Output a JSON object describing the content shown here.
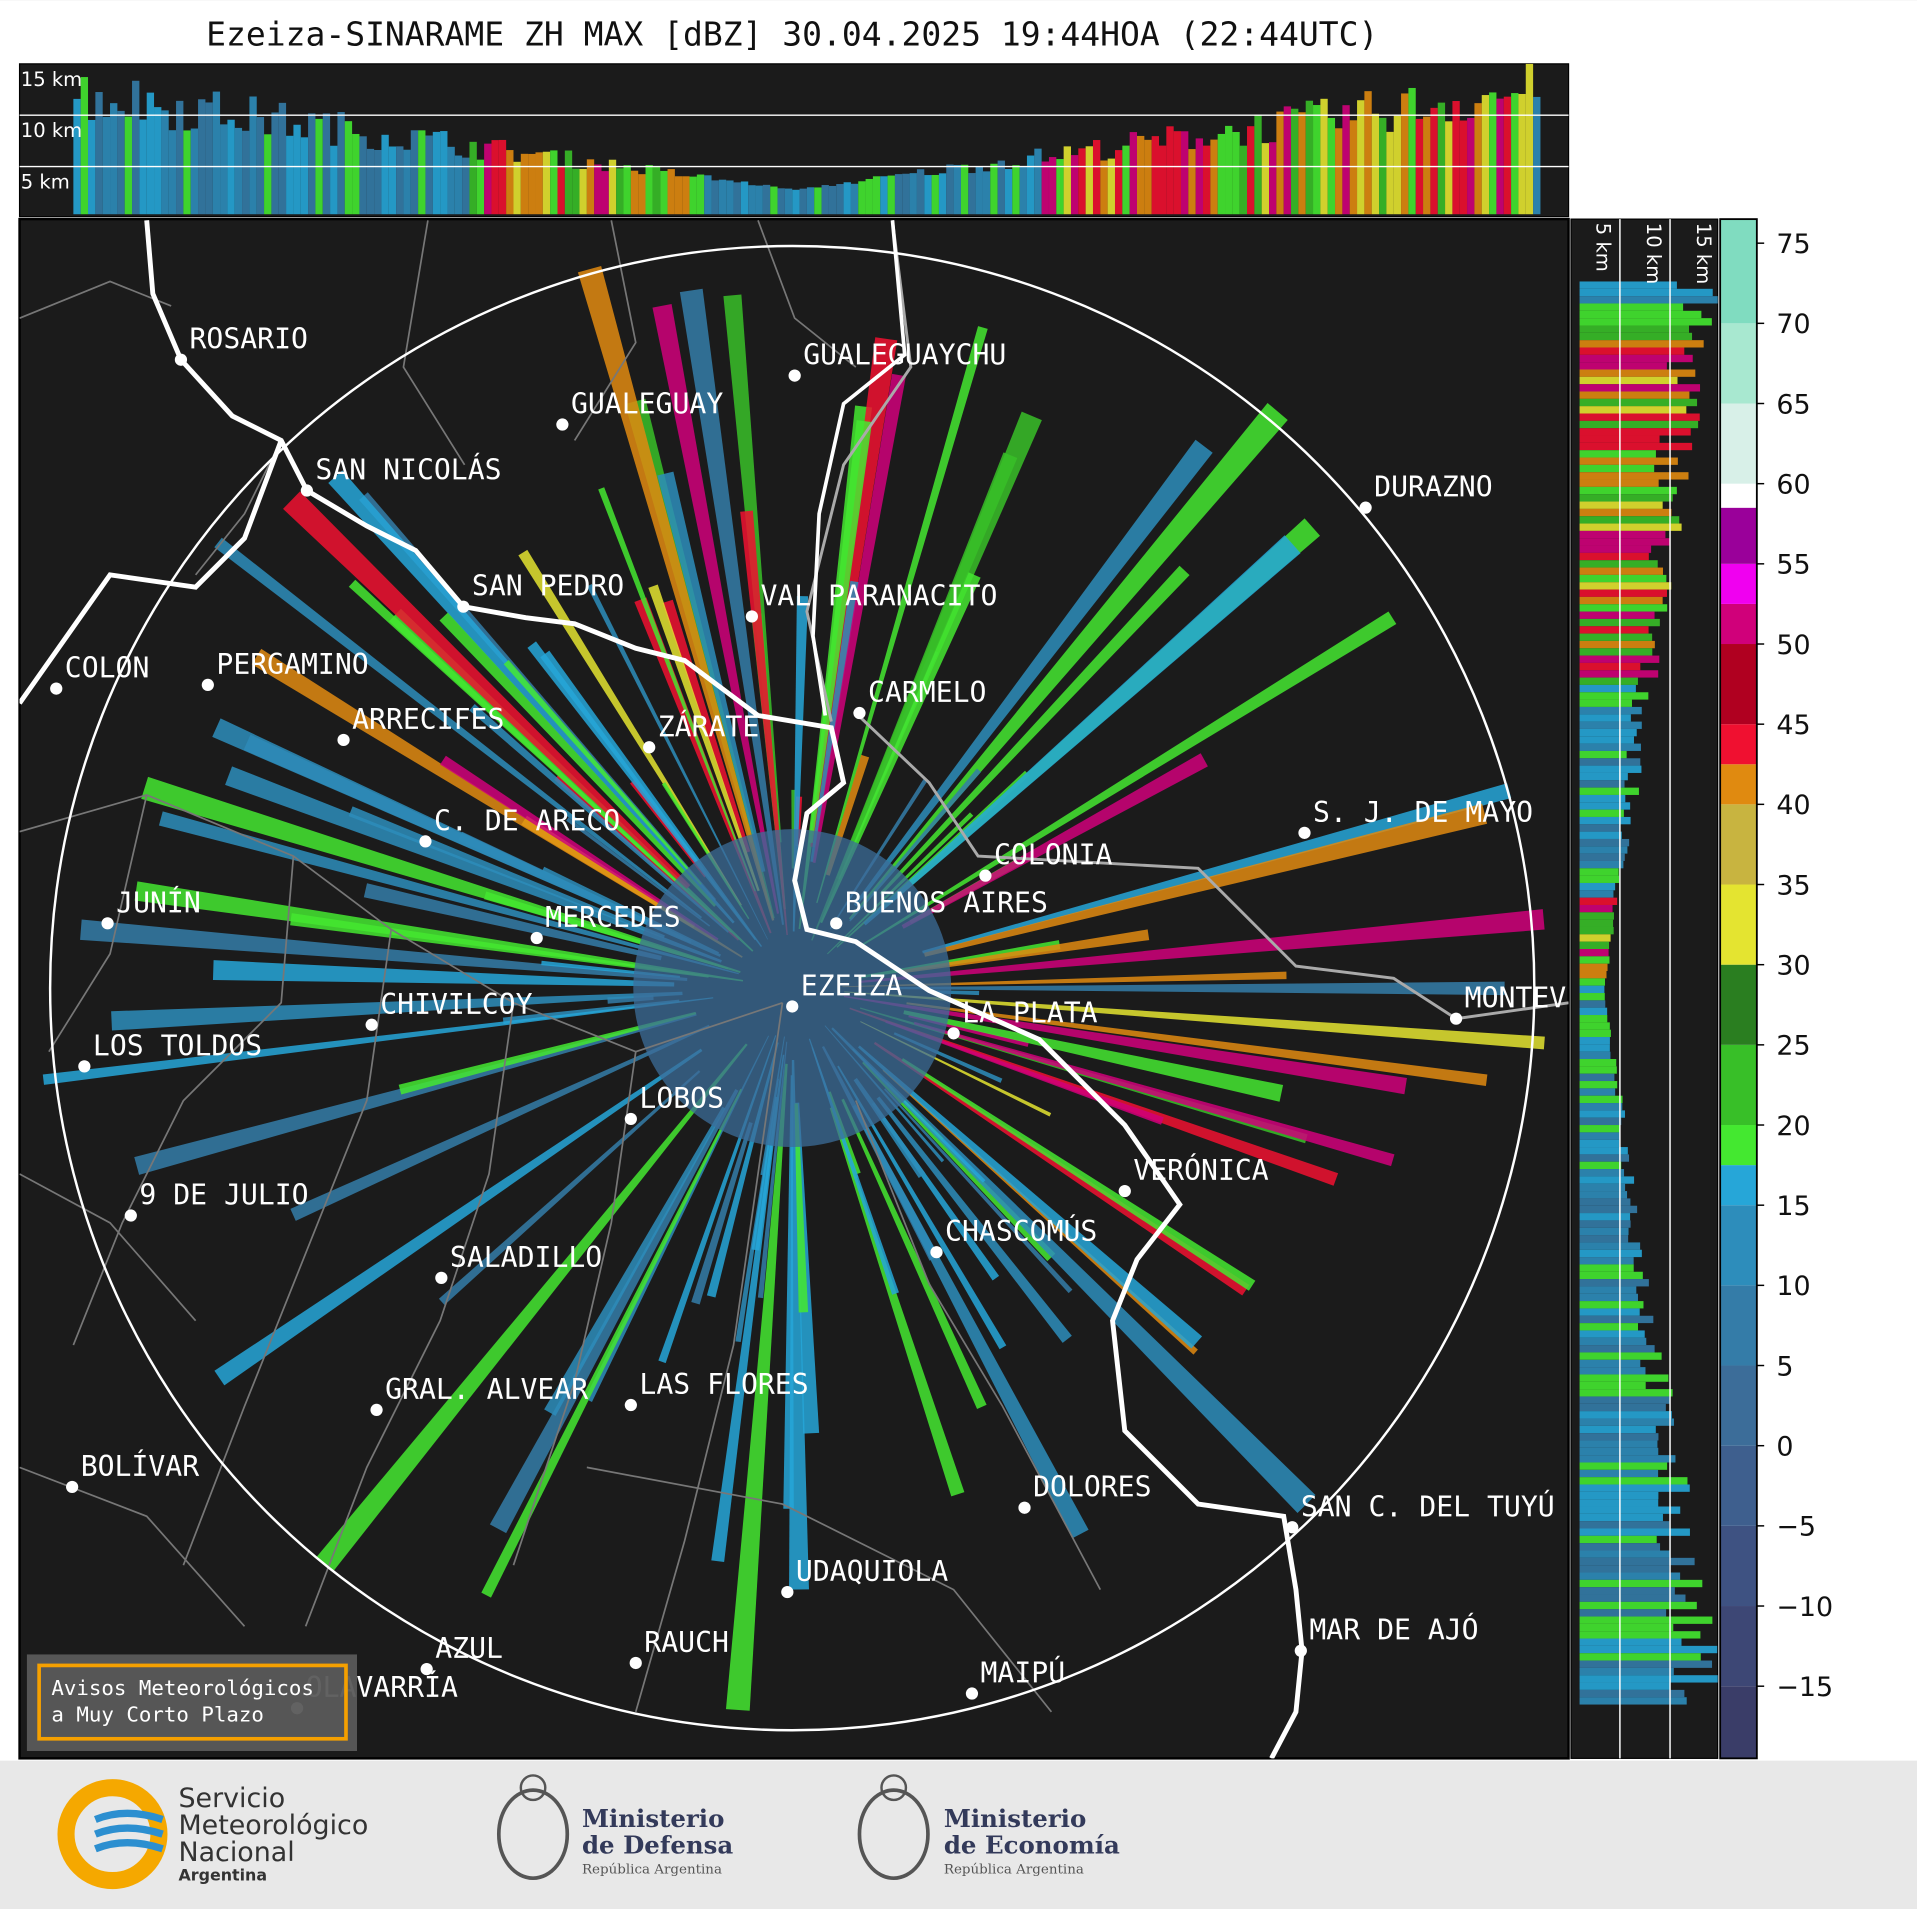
{
  "title": "Ezeiza-SINARAME ZH MAX [dBZ] 30.04.2025 19:44HOA (22:44UTC)",
  "top_panel": {
    "height_labels": [
      "15 km",
      "10 km",
      "5 km"
    ]
  },
  "side_panel": {
    "height_labels": [
      "5 km",
      "10 km",
      "15 km"
    ]
  },
  "map": {
    "cities": [
      "ROSARIO",
      "GUALEGUAYCHU",
      "GUALEGUAY",
      "SAN NICOLÁS",
      "DURAZNO",
      "SAN PEDRO",
      "VAL PARANACITO",
      "COLON",
      "PERGAMINO",
      "CARMELO",
      "ARRECIFES",
      "ZÁRATE",
      "S. J. DE MAYO",
      "C. DE ARECO",
      "COLONIA",
      "JUNÍN",
      "BUENOS AIRES",
      "MERCEDES",
      "EZEIZA",
      "MONTEVIDEO",
      "LA PLATA",
      "CHIVILCOY",
      "LOS TOLDOS",
      "LOBOS",
      "VERÓNICA",
      "9 DE JULIO",
      "CHASCOMÚS",
      "SALADILLO",
      "GRAL. ALVEAR",
      "LAS FLORES",
      "BOLÍVAR",
      "DOLORES",
      "SAN C. DEL TUYÚ",
      "UDAQUIOLA",
      "MAR DE AJÓ",
      "AZUL",
      "RAUCH",
      "OLAVARRÍA",
      "MAIPÚ"
    ],
    "warning_box": [
      "Avisos Meteorológicos",
      "a Muy Corto Plazo"
    ]
  },
  "colorbar": {
    "ylim": [
      -19.5,
      76.5
    ],
    "ticks": [
      75,
      70,
      65,
      60,
      55,
      50,
      45,
      40,
      35,
      30,
      25,
      20,
      15,
      10,
      5,
      0,
      {
        "value": -5,
        "label": "−5"
      },
      {
        "value": -10,
        "label": "−10"
      },
      {
        "value": -15,
        "label": "−15"
      }
    ],
    "bands": [
      {
        "from": -19.5,
        "color": "#3a3d68"
      },
      {
        "from": -15,
        "color": "#3d4775"
      },
      {
        "from": -10,
        "color": "#3e5282"
      },
      {
        "from": -5,
        "color": "#3e5f8e"
      },
      {
        "from": 0,
        "color": "#3c6d99"
      },
      {
        "from": 5,
        "color": "#347ca8"
      },
      {
        "from": 10,
        "color": "#2d8dbb"
      },
      {
        "from": 15,
        "color": "#26a6d8"
      },
      {
        "from": 17.5,
        "color": "#44e830"
      },
      {
        "from": 20,
        "color": "#38bf28"
      },
      {
        "from": 25,
        "color": "#2a7e20"
      },
      {
        "from": 30,
        "color": "#e4e430"
      },
      {
        "from": 35,
        "color": "#c8b440"
      },
      {
        "from": 40,
        "color": "#e08a10"
      },
      {
        "from": 42.5,
        "color": "#f01030"
      },
      {
        "from": 45,
        "color": "#b00020"
      },
      {
        "from": 50,
        "color": "#d0007a"
      },
      {
        "from": 52.5,
        "color": "#f000f0"
      },
      {
        "from": 55,
        "color": "#9a009a"
      },
      {
        "from": 58.5,
        "color": "#ffffff"
      },
      {
        "from": 60,
        "color": "#d8f0e8"
      },
      {
        "from": 65,
        "color": "#a8e8d0"
      },
      {
        "from": 70,
        "color": "#80dcc0"
      }
    ]
  },
  "footer": {
    "smn": [
      "Servicio",
      "Meteorológico",
      "Nacional",
      "Argentina"
    ],
    "defensa": [
      "Ministerio",
      "de Defensa",
      "República Argentina"
    ],
    "economia": [
      "Ministerio",
      "de Economía",
      "República Argentina"
    ]
  }
}
